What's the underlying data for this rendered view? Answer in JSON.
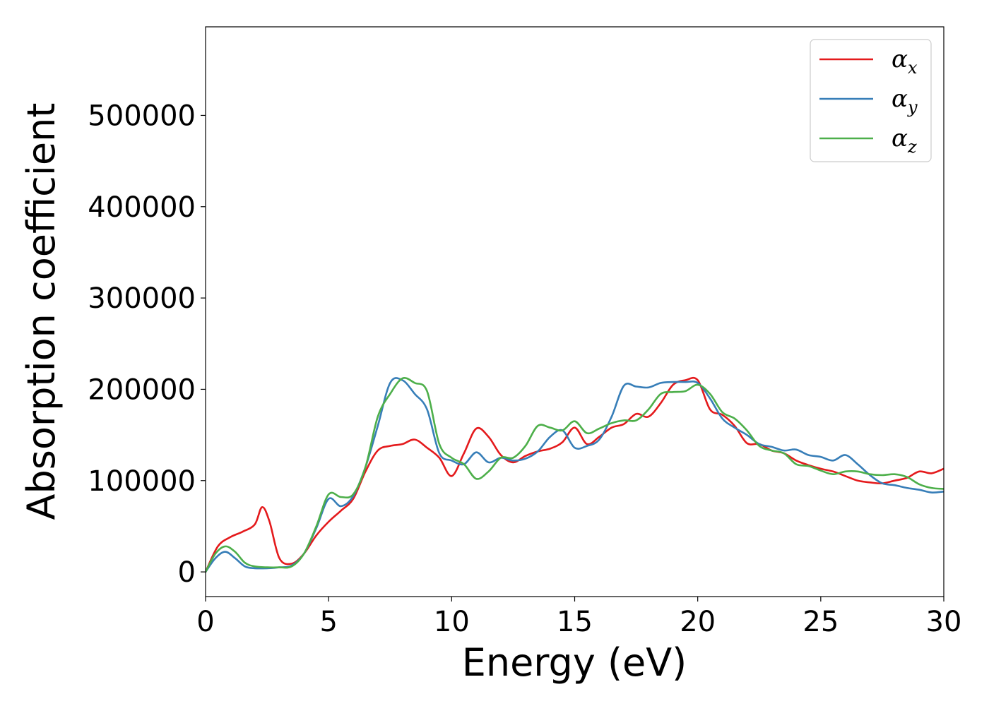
{
  "chart_data": {
    "type": "line",
    "xlabel": "Energy (eV)",
    "ylabel": "Absorption coefficient",
    "xlim": [
      0,
      30
    ],
    "ylim": [
      -27000,
      597000
    ],
    "xticks": [
      "0",
      "5",
      "10",
      "15",
      "20",
      "25",
      "30"
    ],
    "yticks": [
      "0",
      "100000",
      "200000",
      "300000",
      "400000",
      "500000"
    ],
    "grid": false,
    "legend_position": "top-right",
    "series": [
      {
        "name": "αx",
        "symbol": "α",
        "subscript": "x",
        "color": "#e41a1c",
        "x": [
          0,
          0.5,
          1,
          1.5,
          2,
          2.3,
          2.6,
          3,
          3.5,
          4,
          4.5,
          5,
          5.5,
          6,
          6.5,
          7,
          7.5,
          8,
          8.5,
          9,
          9.5,
          10,
          10.5,
          11,
          11.5,
          12,
          12.5,
          13,
          13.5,
          14,
          14.5,
          15,
          15.5,
          16,
          16.5,
          17,
          17.5,
          18,
          18.5,
          19,
          19.5,
          20,
          20.5,
          21,
          21.5,
          22,
          22.5,
          23,
          23.5,
          24,
          24.5,
          25,
          25.5,
          26,
          26.5,
          27,
          27.5,
          28,
          28.5,
          29,
          29.5,
          30
        ],
        "y": [
          0,
          28000,
          38000,
          44000,
          52000,
          71000,
          55000,
          15000,
          9000,
          20000,
          40000,
          55000,
          67000,
          80000,
          110000,
          133000,
          138000,
          140000,
          145000,
          136000,
          125000,
          105000,
          130000,
          157000,
          148000,
          128000,
          120000,
          127000,
          132000,
          135000,
          142000,
          158000,
          140000,
          148000,
          158000,
          162000,
          173000,
          170000,
          185000,
          205000,
          210000,
          210000,
          178000,
          172000,
          160000,
          141000,
          140000,
          133000,
          130000,
          122000,
          117000,
          113000,
          110000,
          105000,
          100000,
          98000,
          97000,
          100000,
          103000,
          110000,
          108000,
          113000
        ]
      },
      {
        "name": "αy",
        "symbol": "α",
        "subscript": "y",
        "color": "#377eb8",
        "x": [
          0,
          0.4,
          0.8,
          1.2,
          1.6,
          2,
          2.5,
          3,
          3.5,
          4,
          4.5,
          5,
          5.5,
          6,
          6.5,
          7,
          7.5,
          8,
          8.5,
          9,
          9.5,
          10,
          10.5,
          11,
          11.5,
          12,
          12.5,
          13,
          13.5,
          14,
          14.5,
          15,
          15.5,
          16,
          16.5,
          17,
          17.5,
          18,
          18.5,
          19,
          19.5,
          20,
          20.5,
          21,
          21.5,
          22,
          22.5,
          23,
          23.5,
          24,
          24.5,
          25,
          25.5,
          26,
          26.5,
          27,
          27.5,
          28,
          28.5,
          29,
          29.5,
          30
        ],
        "y": [
          0,
          15000,
          22000,
          15000,
          6000,
          4000,
          4000,
          5000,
          7000,
          20000,
          48000,
          80000,
          72000,
          83000,
          115000,
          160000,
          207000,
          210000,
          195000,
          178000,
          130000,
          122000,
          118000,
          131000,
          120000,
          125000,
          122000,
          124000,
          132000,
          148000,
          155000,
          136000,
          138000,
          145000,
          170000,
          204000,
          203000,
          202000,
          207000,
          208000,
          208000,
          207000,
          190000,
          168000,
          158000,
          150000,
          140000,
          137000,
          133000,
          134000,
          128000,
          126000,
          122000,
          128000,
          118000,
          106000,
          97000,
          95000,
          92000,
          90000,
          87000,
          88000
        ]
      },
      {
        "name": "αz",
        "symbol": "α",
        "subscript": "z",
        "color": "#4daf4a",
        "x": [
          0,
          0.4,
          0.8,
          1.2,
          1.6,
          2,
          2.5,
          3,
          3.5,
          4,
          4.5,
          5,
          5.5,
          6,
          6.5,
          7,
          7.5,
          8,
          8.5,
          9,
          9.5,
          10,
          10.5,
          11,
          11.5,
          12,
          12.5,
          13,
          13.5,
          14,
          14.5,
          15,
          15.5,
          16,
          16.5,
          17,
          17.5,
          18,
          18.5,
          19,
          19.5,
          20,
          20.5,
          21,
          21.5,
          22,
          22.5,
          23,
          23.5,
          24,
          24.5,
          25,
          25.5,
          26,
          26.5,
          27,
          27.5,
          28,
          28.5,
          29,
          29.5,
          30
        ],
        "y": [
          0,
          20000,
          28000,
          22000,
          10000,
          6000,
          5000,
          5000,
          6000,
          20000,
          50000,
          85000,
          82000,
          85000,
          115000,
          170000,
          195000,
          212000,
          207000,
          198000,
          140000,
          125000,
          118000,
          102000,
          110000,
          125000,
          125000,
          138000,
          160000,
          158000,
          155000,
          165000,
          152000,
          157000,
          163000,
          166000,
          166000,
          178000,
          195000,
          197000,
          198000,
          205000,
          195000,
          175000,
          168000,
          155000,
          138000,
          133000,
          130000,
          118000,
          116000,
          111000,
          107000,
          110000,
          110000,
          107000,
          106000,
          107000,
          104000,
          96000,
          92000,
          91000
        ]
      }
    ]
  }
}
